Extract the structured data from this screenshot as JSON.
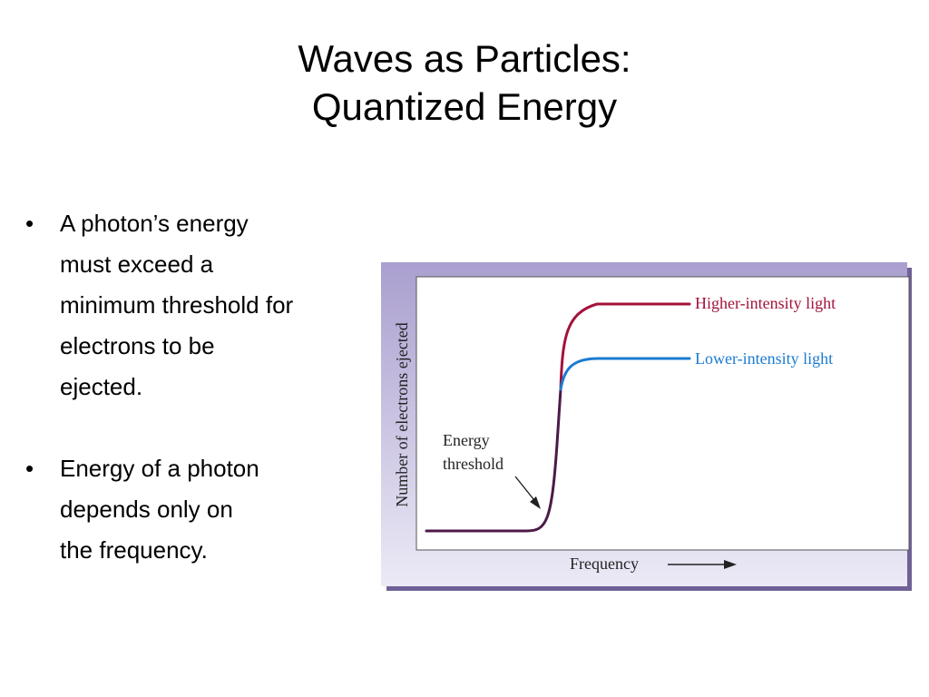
{
  "slide": {
    "title_line1": "Waves as Particles:",
    "title_line2": "Quantized Energy",
    "bullets": [
      {
        "marker": "•",
        "lines": [
          "A photon’s energy",
          "must exceed a",
          "minimum threshold for",
          "electrons to be",
          "ejected."
        ]
      },
      {
        "marker": "•",
        "lines": [
          "Energy of a photon",
          "depends only on",
          "the frequency."
        ]
      }
    ]
  },
  "figure": {
    "ylabel": "Number of electrons ejected",
    "xlabel": "Frequency",
    "series": [
      {
        "name": "Higher-intensity light",
        "color": "#a3123a"
      },
      {
        "name": "Lower-intensity light",
        "color": "#1b7bd1"
      }
    ],
    "annotation": {
      "line1": "Energy",
      "line2": "threshold"
    },
    "colors": {
      "frame": "#b4a9d4",
      "shadow": "#6f6196",
      "ink": "#222222",
      "threshold_curve": "#4c1a48"
    }
  }
}
